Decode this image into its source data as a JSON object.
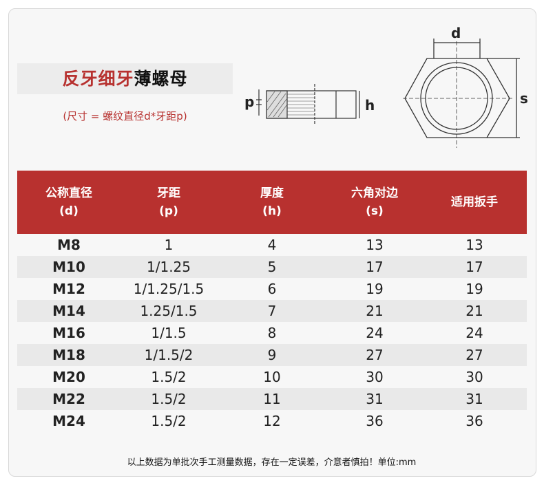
{
  "title": {
    "red_part": "反牙细牙",
    "black_part": "薄螺母"
  },
  "subtitle": "(尺寸 = 螺纹直径d*牙距p)",
  "diagram_labels": {
    "p": "p",
    "h": "h",
    "d": "d",
    "s": "s"
  },
  "table": {
    "headers": [
      {
        "line1": "公称直径",
        "line2": "(d)"
      },
      {
        "line1": "牙距",
        "line2": "(p)"
      },
      {
        "line1": "厚度",
        "line2": "(h)"
      },
      {
        "line1": "六角对边",
        "line2": "(s)"
      },
      {
        "line1": "适用扳手",
        "line2": ""
      }
    ],
    "rows": [
      [
        "M8",
        "1",
        "4",
        "13",
        "13"
      ],
      [
        "M10",
        "1/1.25",
        "5",
        "17",
        "17"
      ],
      [
        "M12",
        "1/1.25/1.5",
        "6",
        "19",
        "19"
      ],
      [
        "M14",
        "1.25/1.5",
        "7",
        "21",
        "21"
      ],
      [
        "M16",
        "1/1.5",
        "8",
        "24",
        "24"
      ],
      [
        "M18",
        "1/1.5/2",
        "9",
        "27",
        "27"
      ],
      [
        "M20",
        "1.5/2",
        "10",
        "30",
        "30"
      ],
      [
        "M22",
        "1.5/2",
        "11",
        "31",
        "31"
      ],
      [
        "M24",
        "1.5/2",
        "12",
        "36",
        "36"
      ]
    ]
  },
  "footer": "以上数据为单批次手工测量数据，存在一定误差，介意者慎拍！单位:mm",
  "colors": {
    "accent": "#b8312f",
    "row_alt": "#e9e9e9"
  }
}
